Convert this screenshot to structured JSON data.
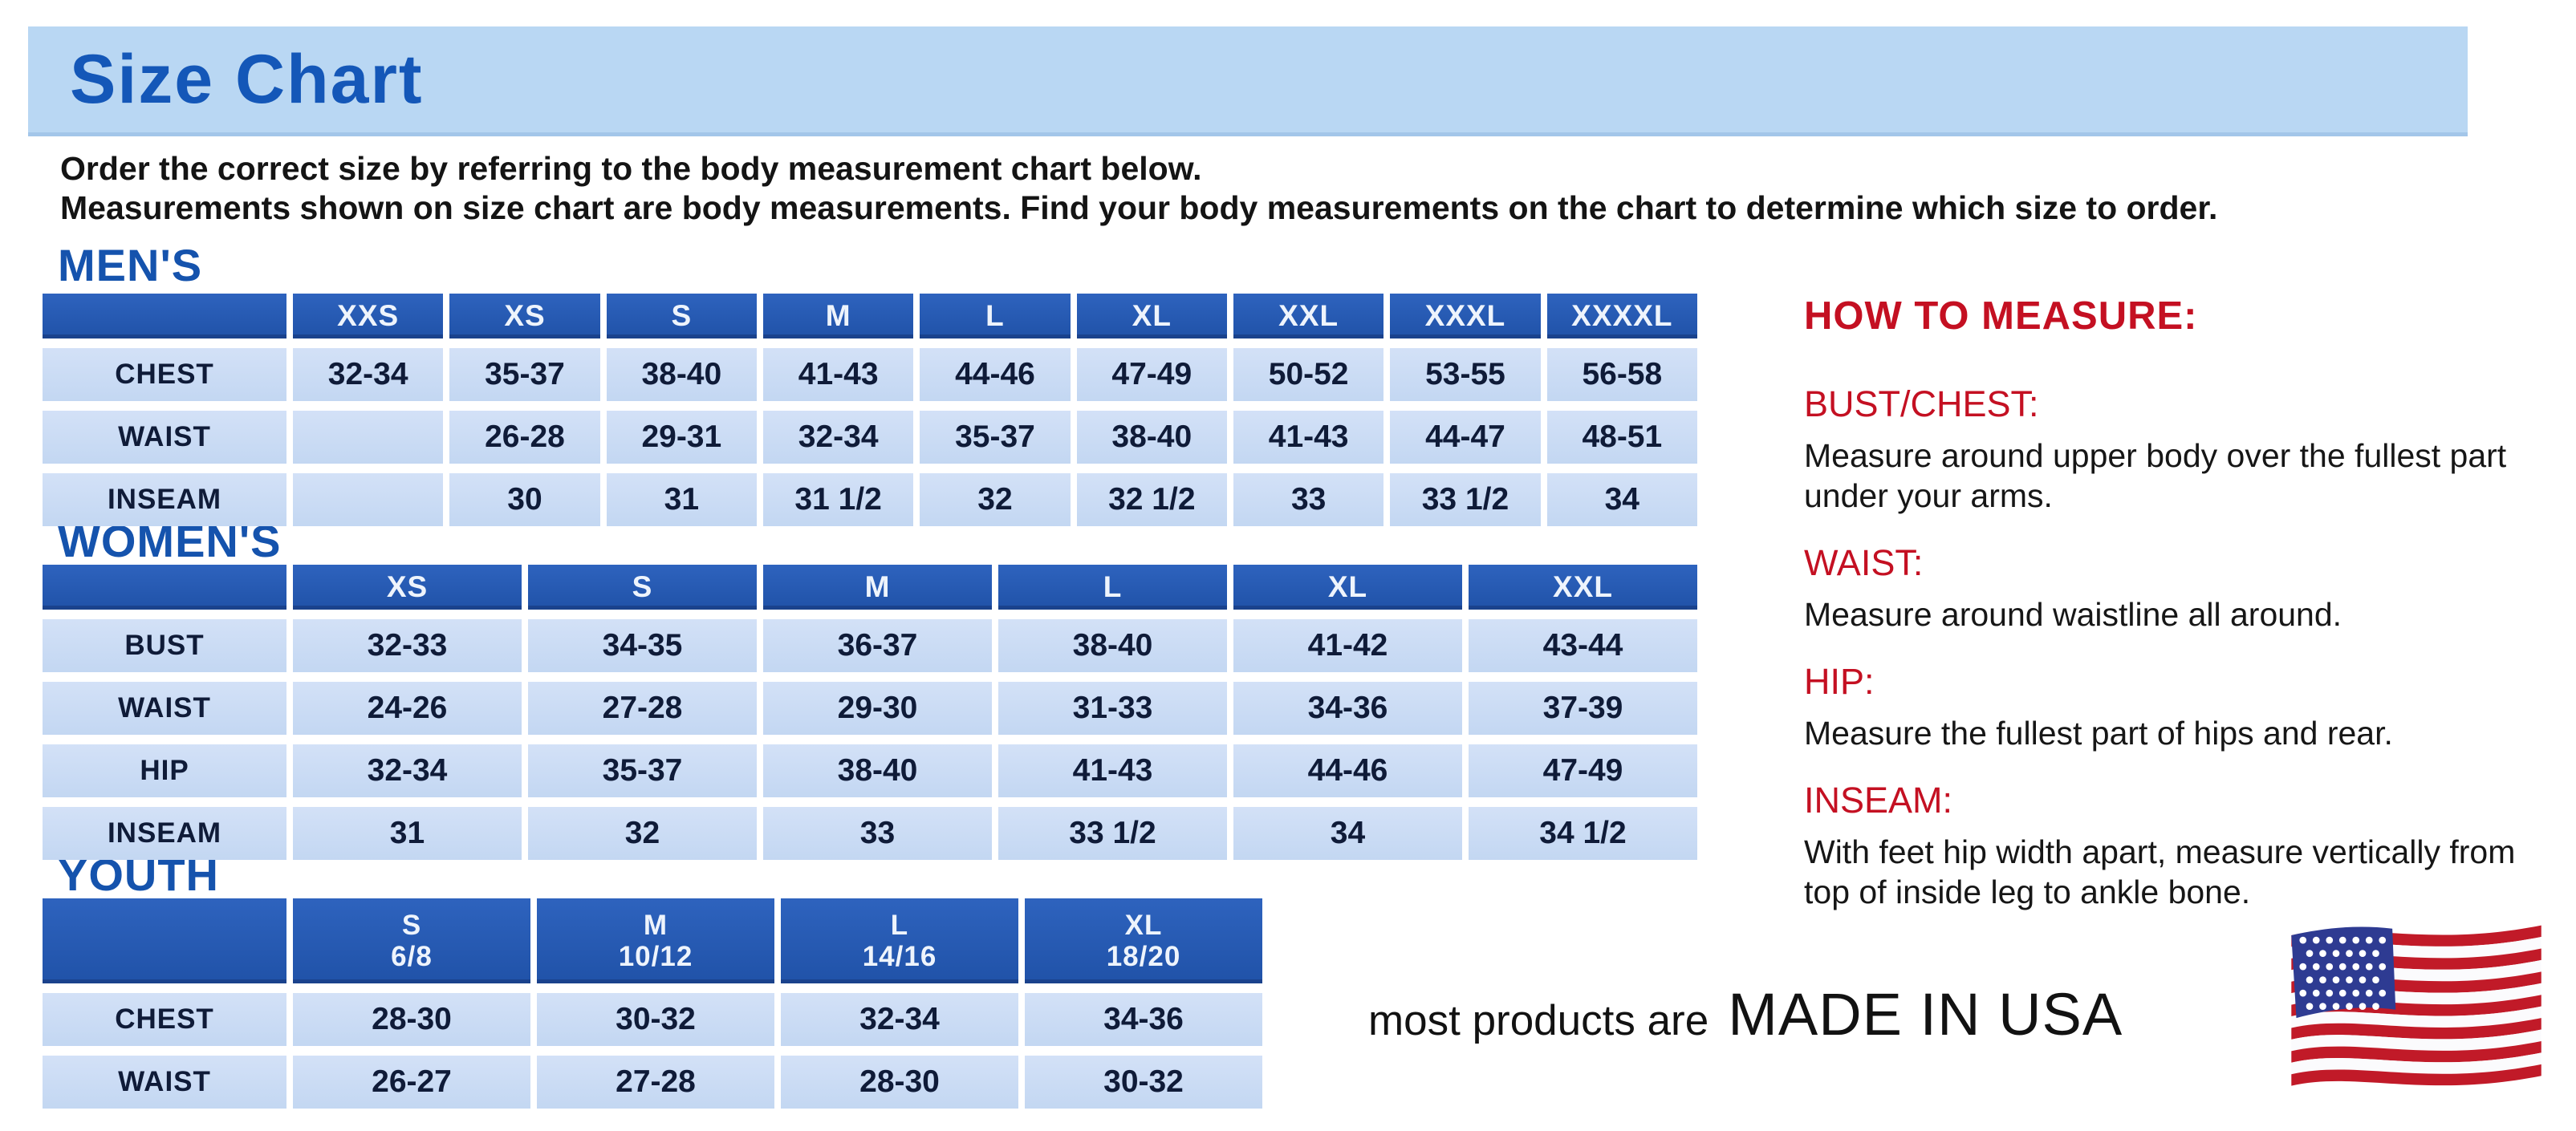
{
  "page": {
    "title": "Size Chart",
    "intro_line1": "Order the correct size by referring to the body measurement chart below.",
    "intro_line2": "Measurements shown on size chart are body measurements.  Find your body measurements on the chart to determine which size to order."
  },
  "tables": {
    "mens": {
      "heading": "MEN'S",
      "columns": [
        "",
        "XXS",
        "XS",
        "S",
        "M",
        "L",
        "XL",
        "XXL",
        "XXXL",
        "XXXXL"
      ],
      "rows": [
        {
          "label": "CHEST",
          "values": [
            "32-34",
            "35-37",
            "38-40",
            "41-43",
            "44-46",
            "47-49",
            "50-52",
            "53-55",
            "56-58"
          ]
        },
        {
          "label": "WAIST",
          "values": [
            "",
            "26-28",
            "29-31",
            "32-34",
            "35-37",
            "38-40",
            "41-43",
            "44-47",
            "48-51"
          ]
        },
        {
          "label": "INSEAM",
          "values": [
            "",
            "30",
            "31",
            "31 1/2",
            "32",
            "32 1/2",
            "33",
            "33 1/2",
            "34"
          ]
        }
      ]
    },
    "womens": {
      "heading": "WOMEN'S",
      "columns": [
        "",
        "XS",
        "S",
        "M",
        "L",
        "XL",
        "XXL"
      ],
      "rows": [
        {
          "label": "BUST",
          "values": [
            "32-33",
            "34-35",
            "36-37",
            "38-40",
            "41-42",
            "43-44"
          ]
        },
        {
          "label": "WAIST",
          "values": [
            "24-26",
            "27-28",
            "29-30",
            "31-33",
            "34-36",
            "37-39"
          ]
        },
        {
          "label": "HIP",
          "values": [
            "32-34",
            "35-37",
            "38-40",
            "41-43",
            "44-46",
            "47-49"
          ]
        },
        {
          "label": "INSEAM",
          "values": [
            "31",
            "32",
            "33",
            "33 1/2",
            "34",
            "34 1/2"
          ]
        }
      ]
    },
    "youth": {
      "heading": "YOUTH",
      "columns": [
        "",
        "S\n6/8",
        "M\n10/12",
        "L\n14/16",
        "XL\n18/20"
      ],
      "rows": [
        {
          "label": "CHEST",
          "values": [
            "28-30",
            "30-32",
            "32-34",
            "34-36"
          ]
        },
        {
          "label": "WAIST",
          "values": [
            "26-27",
            "27-28",
            "28-30",
            "30-32"
          ]
        }
      ]
    }
  },
  "how_to_measure": {
    "heading": "HOW TO MEASURE:",
    "items": [
      {
        "label": "BUST/CHEST:",
        "text": "Measure around upper body over the fullest part under your arms."
      },
      {
        "label": "WAIST:",
        "text": "Measure around waistline all around."
      },
      {
        "label": "HIP:",
        "text": "Measure the fullest part of hips and rear."
      },
      {
        "label": "INSEAM:",
        "text": "With feet hip width apart, measure vertically from top of inside leg to ankle bone."
      }
    ]
  },
  "footer": {
    "prefix": "most products are",
    "emphasis": "MADE IN USA",
    "flag_icon": "usa-flag-icon"
  },
  "colors": {
    "banner_blue": "#b9d7f3",
    "title_blue": "#1457b8",
    "section_blue": "#1553ad",
    "header_cell_blue": "#2558b4",
    "cell_light_blue": "#c9dcf5",
    "cell_text_navy": "#0f1b38",
    "accent_red": "#c41022",
    "flag_red": "#c11a28",
    "flag_blue": "#2e3b92",
    "flag_white": "#fbfbfd"
  }
}
